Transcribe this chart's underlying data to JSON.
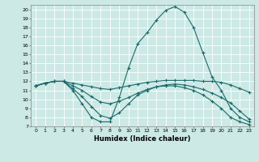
{
  "title": "",
  "xlabel": "Humidex (Indice chaleur)",
  "xlim": [
    -0.5,
    23.5
  ],
  "ylim": [
    7,
    20.5
  ],
  "xticks": [
    0,
    1,
    2,
    3,
    4,
    5,
    6,
    7,
    8,
    9,
    10,
    11,
    12,
    13,
    14,
    15,
    16,
    17,
    18,
    19,
    20,
    21,
    22,
    23
  ],
  "yticks": [
    7,
    8,
    9,
    10,
    11,
    12,
    13,
    14,
    15,
    16,
    17,
    18,
    19,
    20
  ],
  "bg_color": "#cce9e5",
  "line_color": "#1a6b6b",
  "lines": [
    [
      11.5,
      11.8,
      12.0,
      12.0,
      11.0,
      9.5,
      8.0,
      7.5,
      7.5,
      10.2,
      13.5,
      16.2,
      17.4,
      18.8,
      19.9,
      20.3,
      19.7,
      18.0,
      15.2,
      12.5,
      11.0,
      9.0,
      8.0,
      7.5
    ],
    [
      11.5,
      11.8,
      12.0,
      12.0,
      11.8,
      11.6,
      11.4,
      11.2,
      11.1,
      11.3,
      11.5,
      11.7,
      11.9,
      12.0,
      12.1,
      12.1,
      12.1,
      12.1,
      12.0,
      12.0,
      11.9,
      11.6,
      11.2,
      10.8
    ],
    [
      11.5,
      11.8,
      12.0,
      12.0,
      11.5,
      11.0,
      10.3,
      9.7,
      9.5,
      9.8,
      10.2,
      10.7,
      11.1,
      11.4,
      11.6,
      11.7,
      11.6,
      11.4,
      11.1,
      10.7,
      10.2,
      9.6,
      8.7,
      7.8
    ],
    [
      11.5,
      11.8,
      12.0,
      12.0,
      11.2,
      10.3,
      9.2,
      8.2,
      7.9,
      8.5,
      9.5,
      10.5,
      11.0,
      11.4,
      11.5,
      11.5,
      11.3,
      11.0,
      10.5,
      9.8,
      9.0,
      8.0,
      7.5,
      7.2
    ]
  ]
}
